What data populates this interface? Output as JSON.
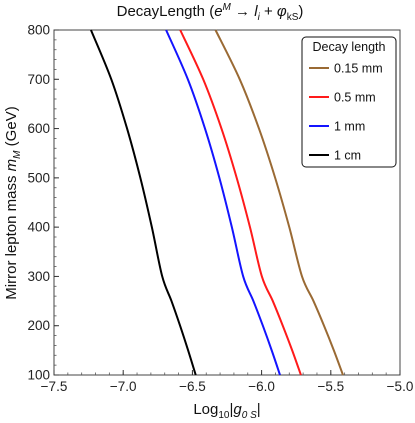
{
  "chart_data": {
    "type": "line",
    "title": "DecayLength (e^M → l_i + φ_kS)",
    "title_parts": {
      "lead": "DecayLength (",
      "e_base": "e",
      "e_sup": "M",
      "arrow": " → ",
      "l_base": "l",
      "l_sub": "i",
      "plus": " + ",
      "phi_base": "φ",
      "phi_sub": "kS",
      "close": ")"
    },
    "xlabel": "Log10|g0 S|",
    "xlabel_parts": {
      "base": "Log",
      "sub1": "10",
      "abs_open": "|",
      "g": "g",
      "sub2": "0 S",
      "abs_close": "|"
    },
    "ylabel": "Mirror lepton mass m_M (GeV)",
    "ylabel_parts": {
      "lead": "Mirror lepton mass ",
      "m": "m",
      "sub": "M",
      "tail": " (GeV)"
    },
    "xlim": [
      -7.5,
      -5.0
    ],
    "ylim": [
      100,
      800
    ],
    "xticks": [
      -7.5,
      -7.0,
      -6.5,
      -6.0,
      -5.5,
      -5.0
    ],
    "xtick_labels": [
      "−7.5",
      "−7.0",
      "−6.5",
      "−6.0",
      "−5.5",
      "−5.0"
    ],
    "yticks": [
      100,
      200,
      300,
      400,
      500,
      600,
      700,
      800
    ],
    "ytick_labels": [
      "100",
      "200",
      "300",
      "400",
      "500",
      "600",
      "700",
      "800"
    ],
    "legend": {
      "title": "Decay length",
      "placement": "top-right"
    },
    "series": [
      {
        "name": "0.15 mm",
        "color": "#9a6a34",
        "x": [
          -6.333,
          -6.158,
          -6.019,
          -5.902,
          -5.8,
          -5.708,
          -5.625,
          -5.549,
          -5.478,
          -5.412
        ],
        "y": [
          800,
          700,
          600,
          500,
          400,
          300,
          250,
          200,
          150,
          100
        ]
      },
      {
        "name": "0.5 mm",
        "color": "#ff1a1a",
        "x": [
          -6.588,
          -6.422,
          -6.29,
          -6.18,
          -6.084,
          -5.998,
          -5.919,
          -5.847,
          -5.779,
          -5.716
        ],
        "y": [
          800,
          700,
          600,
          500,
          400,
          300,
          250,
          200,
          150,
          100
        ]
      },
      {
        "name": "1 mm",
        "color": "#1414ff",
        "x": [
          -6.69,
          -6.533,
          -6.409,
          -6.305,
          -6.215,
          -6.133,
          -6.059,
          -5.991,
          -5.927,
          -5.867
        ],
        "y": [
          800,
          700,
          600,
          500,
          400,
          300,
          250,
          200,
          150,
          100
        ]
      },
      {
        "name": "1 cm",
        "color": "#000000",
        "x": [
          -7.233,
          -7.086,
          -6.972,
          -6.876,
          -6.793,
          -6.718,
          -6.651,
          -6.589,
          -6.531,
          -6.476
        ],
        "y": [
          800,
          700,
          600,
          500,
          400,
          300,
          250,
          200,
          150,
          100
        ]
      }
    ]
  }
}
